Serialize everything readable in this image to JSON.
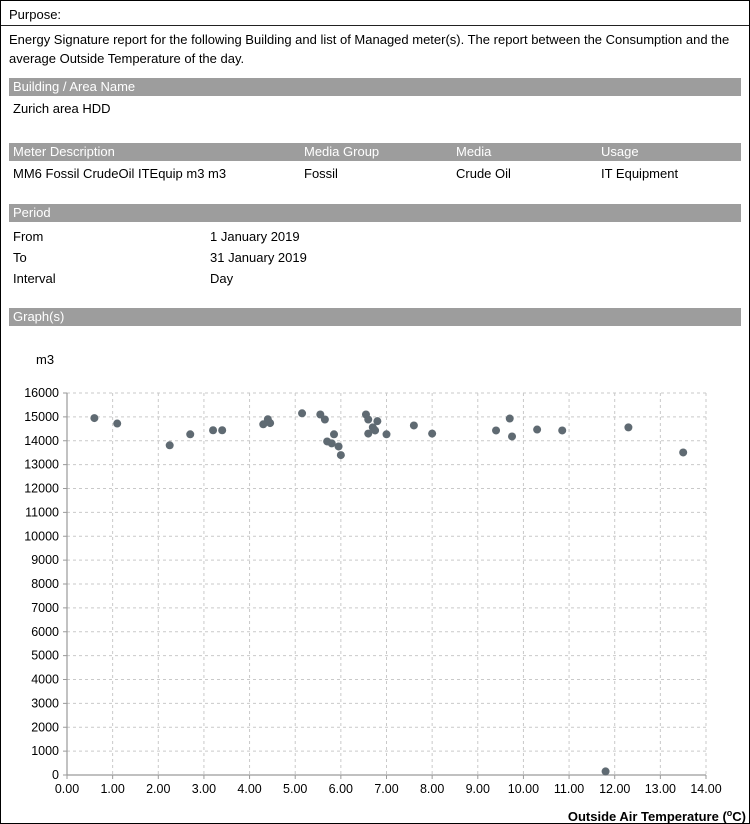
{
  "purpose": {
    "label": "Purpose:",
    "text": "Energy Signature report for the following Building and list of Managed meter(s). The report between the Consumption and the average Outside Temperature of the day."
  },
  "building": {
    "header": "Building / Area Name",
    "value": "Zurich area HDD"
  },
  "meter": {
    "columns": [
      "Meter Description",
      "Media Group",
      "Media",
      "Usage"
    ],
    "rows": [
      [
        "MM6 Fossil CrudeOil ITEquip m3 m3",
        "Fossil",
        "Crude Oil",
        "IT Equipment"
      ]
    ]
  },
  "period": {
    "header": "Period",
    "rows": [
      {
        "label": "From",
        "value": "1 January 2019"
      },
      {
        "label": "To",
        "value": "31 January 2019"
      },
      {
        "label": "Interval",
        "value": "Day"
      }
    ]
  },
  "graphs": {
    "header": "Graph(s)",
    "y_unit_label": "m3"
  },
  "colors": {
    "section_bar": "#9d9d9d",
    "section_bar_text": "#ffffff",
    "point": "#5f6a72",
    "grid": "#c9c9c9",
    "axis": "#9a9a9a"
  },
  "chart_data": {
    "type": "scatter",
    "title": "",
    "xlabel": "Outside Air Temperature (°C)",
    "ylabel": "m3",
    "xlim": [
      0,
      14
    ],
    "ylim": [
      0,
      16000
    ],
    "x_tick_step": 1,
    "y_tick_step": 1000,
    "grid": true,
    "legend": "none",
    "point_color": "#5f6a72",
    "points": [
      [
        0.6,
        14950
      ],
      [
        1.1,
        14720
      ],
      [
        2.25,
        13810
      ],
      [
        2.7,
        14270
      ],
      [
        3.2,
        14440
      ],
      [
        3.4,
        14440
      ],
      [
        4.3,
        14690
      ],
      [
        4.4,
        14900
      ],
      [
        4.45,
        14740
      ],
      [
        5.15,
        15150
      ],
      [
        5.55,
        15100
      ],
      [
        5.65,
        14890
      ],
      [
        5.7,
        13970
      ],
      [
        5.8,
        13890
      ],
      [
        5.85,
        14270
      ],
      [
        5.95,
        13760
      ],
      [
        6.0,
        13400
      ],
      [
        6.55,
        15100
      ],
      [
        6.6,
        14890
      ],
      [
        6.6,
        14300
      ],
      [
        6.7,
        14560
      ],
      [
        6.75,
        14430
      ],
      [
        6.8,
        14820
      ],
      [
        7.0,
        14270
      ],
      [
        7.6,
        14640
      ],
      [
        8.0,
        14300
      ],
      [
        9.4,
        14430
      ],
      [
        9.7,
        14930
      ],
      [
        9.75,
        14180
      ],
      [
        10.3,
        14470
      ],
      [
        10.85,
        14430
      ],
      [
        11.8,
        150
      ],
      [
        12.3,
        14560
      ],
      [
        13.5,
        13510
      ]
    ]
  }
}
